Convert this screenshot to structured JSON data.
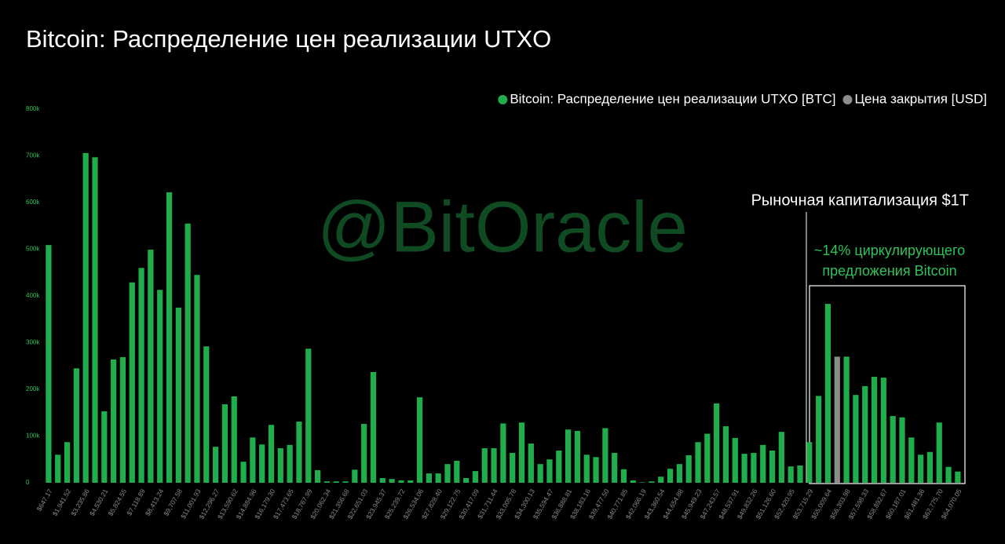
{
  "chart_data": {
    "type": "bar",
    "title": "Bitcoin: Распределение цен реализации UTXO",
    "categories": [
      "$647.17",
      null,
      "$1,941.52",
      null,
      "$3,235.86",
      null,
      "$4,530.21",
      null,
      "$5,824.55",
      null,
      "$7,118.89",
      null,
      "$8,413.24",
      null,
      "$9,707.58",
      null,
      "$11,001.93",
      null,
      "$12,296.27",
      null,
      "$13,590.62",
      null,
      "$14,884.96",
      null,
      "$16,179.30",
      null,
      "$17,473.65",
      null,
      "$18,767.99",
      null,
      "$20,062.34",
      null,
      "$21,356.68",
      null,
      "$22,651.03",
      null,
      "$23,945.37",
      null,
      "$25,239.72",
      null,
      "$26,534.06",
      null,
      "$27,828.40",
      null,
      "$29,122.75",
      null,
      "$30,417.09",
      null,
      "$31,711.44",
      null,
      "$33,005.78",
      null,
      "$34,300.13",
      null,
      "$35,594.47",
      null,
      "$36,888.81",
      null,
      "$38,183.16",
      null,
      "$39,477.50",
      null,
      "$40,771.85",
      null,
      "$42,066.19",
      null,
      "$43,360.54",
      null,
      "$44,654.88",
      null,
      "$45,949.23",
      null,
      "$47,243.57",
      null,
      "$48,537.91",
      null,
      "$49,832.26",
      null,
      "$51,126.60",
      null,
      "$52,420.95",
      null,
      "$53,715.29",
      null,
      "$55,009.64",
      null,
      "$56,303.98",
      null,
      "$57,598.33",
      null,
      "$58,892.67",
      null,
      "$60,187.01",
      null,
      "$61,481.36",
      null,
      "$62,775.70",
      null,
      "$64,070.05"
    ],
    "series": [
      {
        "name": "Bitcoin: Распределение цен реализации UTXO [BTC]",
        "color": "#1fae4b",
        "values": [
          509000,
          60000,
          87000,
          245000,
          706000,
          697000,
          153000,
          264000,
          269000,
          429000,
          460000,
          499000,
          413000,
          622000,
          375000,
          555000,
          445000,
          292000,
          77000,
          168000,
          185000,
          45000,
          97000,
          82000,
          124000,
          74000,
          81000,
          131000,
          287000,
          27000,
          3000,
          3000,
          3000,
          28000,
          126000,
          237000,
          10000,
          8000,
          5000,
          5000,
          183000,
          20000,
          20000,
          40000,
          47000,
          10000,
          25000,
          74000,
          74000,
          127000,
          64000,
          129000,
          84000,
          40000,
          50000,
          69000,
          114000,
          111000,
          60000,
          55000,
          117000,
          64000,
          29000,
          5000,
          1000,
          3000,
          13000,
          30000,
          40000,
          59000,
          87000,
          105000,
          170000,
          121000,
          96000,
          62000,
          64000,
          81000,
          69000,
          109000,
          35000,
          37000,
          87000,
          186000,
          383000,
          null,
          270000,
          188000,
          207000,
          227000,
          225000,
          143000,
          140000,
          97000,
          60000,
          66000,
          129000,
          34000,
          24000
        ]
      },
      {
        "name": "Цена закрытия [USD]",
        "color": "#8c8c8c",
        "values": [
          null,
          null,
          null,
          null,
          null,
          null,
          null,
          null,
          null,
          null,
          null,
          null,
          null,
          null,
          null,
          null,
          null,
          null,
          null,
          null,
          null,
          null,
          null,
          null,
          null,
          null,
          null,
          null,
          null,
          null,
          null,
          null,
          null,
          null,
          null,
          null,
          null,
          null,
          null,
          null,
          null,
          null,
          null,
          null,
          null,
          null,
          null,
          null,
          null,
          null,
          null,
          null,
          null,
          null,
          null,
          null,
          null,
          null,
          null,
          null,
          null,
          null,
          null,
          null,
          null,
          null,
          null,
          null,
          null,
          null,
          null,
          null,
          null,
          null,
          null,
          null,
          null,
          null,
          null,
          null,
          null,
          null,
          null,
          null,
          null,
          270000,
          null,
          null,
          null,
          null,
          null,
          null,
          null,
          null,
          null,
          null,
          null,
          null,
          null
        ]
      }
    ],
    "ylim": [
      0,
      800000
    ],
    "yticks": [
      0,
      {
        "value": 100000,
        "label": "100k"
      },
      {
        "value": 200000,
        "label": "200k"
      },
      {
        "value": 300000,
        "label": "300k"
      },
      {
        "value": 400000,
        "label": "400k"
      },
      {
        "value": 500000,
        "label": "500k"
      },
      {
        "value": 600000,
        "label": "600k"
      },
      {
        "value": 700000,
        "label": "700k"
      },
      {
        "value": 800000,
        "label": "800k"
      }
    ],
    "grid": false,
    "watermark": "@BitOracle",
    "annotations": [
      "Рыночная капитализация $1T",
      "~14% циркулирующего",
      "предложения Bitcoin"
    ]
  }
}
